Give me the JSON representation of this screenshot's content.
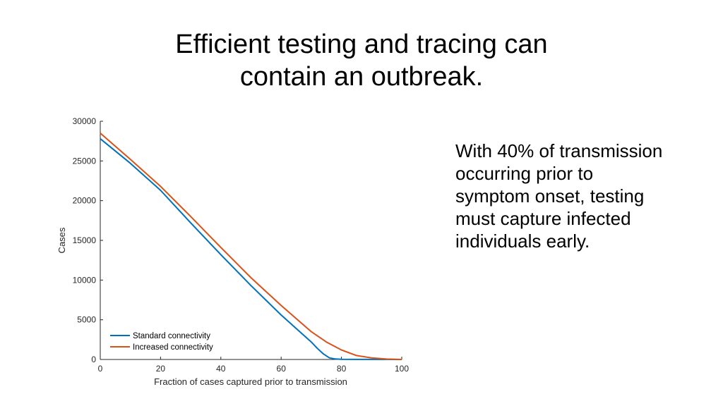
{
  "slide": {
    "title_lines": [
      "Efficient testing and tracing can",
      "contain an outbreak."
    ],
    "body_lines": [
      "With 40% of transmission",
      "occurring prior to",
      "symptom onset, testing",
      "must capture infected",
      "individuals early."
    ]
  },
  "chart_data": {
    "type": "line",
    "xlabel": "Fraction of cases captured prior to transmission",
    "ylabel": "Cases",
    "xlim": [
      0,
      100
    ],
    "ylim": [
      0,
      30000
    ],
    "xticks": [
      0,
      20,
      40,
      60,
      80,
      100
    ],
    "yticks": [
      0,
      5000,
      10000,
      15000,
      20000,
      25000,
      30000
    ],
    "grid": false,
    "legend_position": "bottom-left",
    "series": [
      {
        "name": "Standard connectivity",
        "color": "#0072BD",
        "x": [
          0,
          10,
          20,
          30,
          40,
          50,
          60,
          65,
          70,
          72,
          74,
          76,
          78,
          80,
          85,
          90,
          100
        ],
        "y": [
          27800,
          24700,
          21300,
          17200,
          13200,
          9300,
          5600,
          3900,
          2200,
          1400,
          700,
          200,
          60,
          30,
          10,
          5,
          0
        ]
      },
      {
        "name": "Increased connectivity",
        "color": "#D95319",
        "x": [
          0,
          10,
          20,
          30,
          40,
          50,
          60,
          70,
          75,
          80,
          85,
          90,
          95,
          100
        ],
        "y": [
          28500,
          25200,
          21800,
          18000,
          14100,
          10300,
          6800,
          3500,
          2200,
          1200,
          500,
          200,
          50,
          0
        ]
      }
    ]
  }
}
